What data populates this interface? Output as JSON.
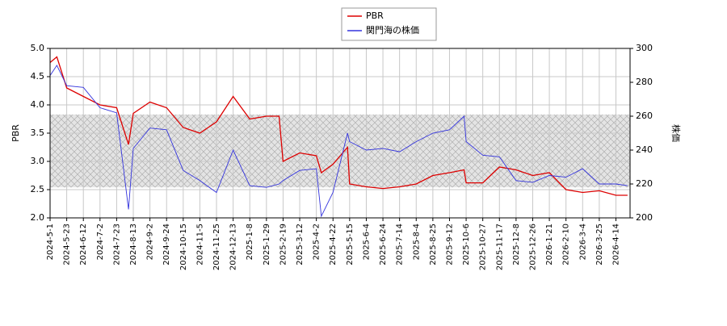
{
  "chart_data": {
    "type": "line",
    "ylabel": "PBR",
    "y2label": "株価",
    "x": [
      "2024-5-1",
      "2024-5-10",
      "2024-5-23",
      "2024-6-12",
      "2024-7-2",
      "2024-7-23",
      "2024-8-7",
      "2024-8-13",
      "2024-9-2",
      "2024-9-24",
      "2024-10-15",
      "2024-11-5",
      "2024-11-25",
      "2024-12-13",
      "2025-1-8",
      "2025-1-29",
      "2025-2-14",
      "2025-2-19",
      "2025-3-12",
      "2025-4-2",
      "2025-4-8",
      "2025-4-22",
      "2025-5-12",
      "2025-5-15",
      "2025-6-4",
      "2025-6-24",
      "2025-7-14",
      "2025-8-4",
      "2025-8-25",
      "2025-9-12",
      "2025-10-3",
      "2025-10-6",
      "2025-10-27",
      "2025-11-17",
      "2025-12-8",
      "2025-12-26",
      "2026-1-21",
      "2026-2-10",
      "2026-3-4",
      "2026-3-25",
      "2026-4-14",
      "2026-4-28"
    ],
    "series": [
      {
        "name": "PBR",
        "color": "#dd0000",
        "values": [
          4.75,
          4.85,
          4.3,
          4.15,
          4.0,
          3.95,
          3.3,
          3.85,
          4.05,
          3.95,
          3.6,
          3.5,
          3.7,
          4.15,
          3.75,
          3.8,
          3.8,
          3.0,
          3.15,
          3.1,
          2.8,
          2.95,
          3.25,
          2.6,
          2.55,
          2.52,
          2.55,
          2.6,
          2.75,
          2.8,
          2.85,
          2.62,
          2.62,
          2.9,
          2.85,
          2.75,
          2.8,
          2.5,
          2.45,
          2.48,
          2.4,
          2.4
        ]
      },
      {
        "name": "関門海の株価",
        "color": "#3333dd",
        "axis": "y2",
        "values": [
          284,
          290,
          278,
          277,
          265,
          262,
          205,
          241,
          253,
          252,
          228,
          222,
          215,
          240,
          219,
          218,
          220,
          222,
          228,
          229,
          201,
          215,
          250,
          245,
          240,
          241,
          239,
          245,
          250,
          252,
          260,
          245,
          237,
          236,
          222,
          221,
          225,
          224,
          229,
          220,
          220,
          219
        ]
      }
    ],
    "shaded_range": [
      2.54,
      3.83
    ],
    "xlim": [
      "2024-5-1",
      "2026-5-1"
    ],
    "xticks": [
      "2024-5-1",
      "2024-5-23",
      "2024-6-12",
      "2024-7-2",
      "2024-7-23",
      "2024-8-13",
      "2024-9-2",
      "2024-9-24",
      "2024-10-15",
      "2024-11-5",
      "2024-11-25",
      "2024-12-13",
      "2025-1-8",
      "2025-1-29",
      "2025-2-19",
      "2025-3-12",
      "2025-4-2",
      "2025-4-22",
      "2025-5-15",
      "2025-6-4",
      "2025-6-24",
      "2025-7-14",
      "2025-8-4",
      "2025-8-25",
      "2025-9-12",
      "2025-10-6",
      "2025-10-27",
      "2025-11-17",
      "2025-12-8",
      "2025-12-26",
      "2026-1-21",
      "2026-2-10",
      "2026-3-4",
      "2026-3-25",
      "2026-4-14"
    ],
    "ylim": [
      2.0,
      5.0
    ],
    "yticks": [
      {
        "value": 2.0,
        "label": "2.0"
      },
      {
        "value": 2.5,
        "label": "2.5"
      },
      {
        "value": 3.0,
        "label": "3.0"
      },
      {
        "value": 3.5,
        "label": "3.5"
      },
      {
        "value": 4.0,
        "label": "4.0"
      },
      {
        "value": 4.5,
        "label": "4.5"
      },
      {
        "value": 5.0,
        "label": "5.0"
      }
    ],
    "y2lim": [
      200,
      300
    ],
    "y2ticks": [
      200,
      220,
      240,
      260,
      280,
      300
    ],
    "grid": true
  }
}
